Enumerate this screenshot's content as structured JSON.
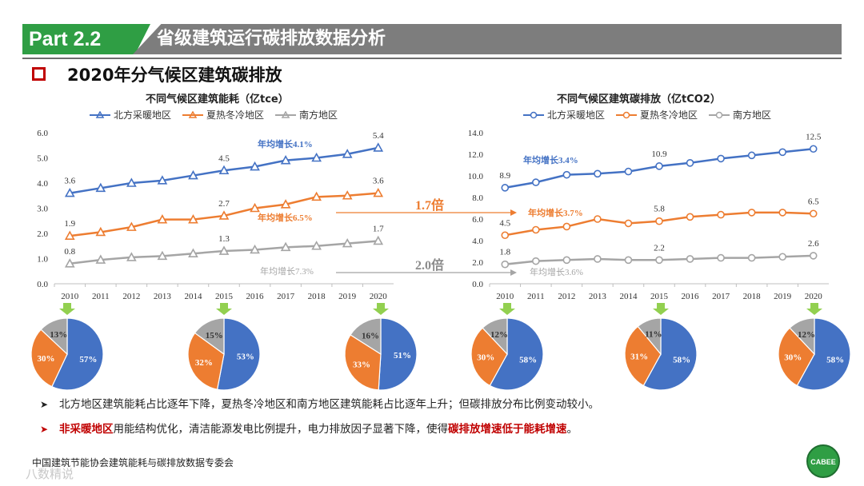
{
  "header": {
    "part": "Part 2.2",
    "title": "省级建筑运行碳排放数据分析"
  },
  "section": {
    "title": "2020年分气候区建筑碳排放"
  },
  "colors": {
    "north": "#4472c4",
    "hot": "#ed7d31",
    "south": "#a5a5a5",
    "green": "#2f9e44",
    "red": "#c00000",
    "grey": "#7d7d7d"
  },
  "legend": [
    "北方采暖地区",
    "夏热冬冷地区",
    "南方地区"
  ],
  "ratios": {
    "r1": "1.7倍",
    "r2": "2.0倍"
  },
  "chart_data": [
    {
      "type": "line",
      "title": "不同气候区建筑能耗（亿tce）",
      "x": [
        "2010",
        "2011",
        "2012",
        "2013",
        "2014",
        "2015",
        "2016",
        "2017",
        "2018",
        "2019",
        "2020"
      ],
      "ylim": [
        0,
        6
      ],
      "yticks": [
        "0.0",
        "1.0",
        "2.0",
        "3.0",
        "4.0",
        "5.0",
        "6.0"
      ],
      "series": [
        {
          "name": "北方采暖地区",
          "values": [
            3.6,
            3.8,
            4.0,
            4.1,
            4.3,
            4.5,
            4.65,
            4.9,
            5.0,
            5.15,
            5.4
          ],
          "labels": {
            "0": "3.6",
            "5": "4.5",
            "10": "5.4"
          },
          "growth": "年均增长4.1%"
        },
        {
          "name": "夏热冬冷地区",
          "values": [
            1.9,
            2.05,
            2.25,
            2.55,
            2.55,
            2.7,
            3.0,
            3.15,
            3.45,
            3.5,
            3.6
          ],
          "labels": {
            "0": "1.9",
            "5": "2.7",
            "10": "3.6"
          },
          "growth": "年均增长6.5%"
        },
        {
          "name": "南方地区",
          "values": [
            0.8,
            0.95,
            1.05,
            1.1,
            1.2,
            1.3,
            1.35,
            1.45,
            1.5,
            1.6,
            1.7
          ],
          "labels": {
            "0": "0.8",
            "5": "1.3",
            "10": "1.7"
          },
          "growth": "年均增长7.3%"
        }
      ]
    },
    {
      "type": "line",
      "title": "不同气候区建筑碳排放（亿tCO2）",
      "x": [
        "2010",
        "2011",
        "2012",
        "2013",
        "2014",
        "2015",
        "2016",
        "2017",
        "2018",
        "2019",
        "2020"
      ],
      "ylim": [
        0,
        14
      ],
      "yticks": [
        "0.0",
        "2.0",
        "4.0",
        "6.0",
        "8.0",
        "10.0",
        "12.0",
        "14.0"
      ],
      "series": [
        {
          "name": "北方采暖地区",
          "values": [
            8.9,
            9.4,
            10.1,
            10.2,
            10.4,
            10.9,
            11.2,
            11.6,
            11.9,
            12.2,
            12.5
          ],
          "labels": {
            "0": "8.9",
            "5": "10.9",
            "10": "12.5"
          },
          "growth": "年均增长3.4%"
        },
        {
          "name": "夏热冬冷地区",
          "values": [
            4.5,
            5.0,
            5.3,
            6.0,
            5.6,
            5.8,
            6.2,
            6.4,
            6.6,
            6.6,
            6.5
          ],
          "labels": {
            "0": "4.5",
            "5": "5.8",
            "10": "6.5"
          },
          "growth": "年均增长3.7%"
        },
        {
          "name": "南方地区",
          "values": [
            1.8,
            2.1,
            2.2,
            2.3,
            2.2,
            2.2,
            2.3,
            2.4,
            2.4,
            2.5,
            2.6
          ],
          "labels": {
            "0": "1.8",
            "5": "2.2",
            "10": "2.6"
          },
          "growth": "年均增长3.6%"
        }
      ]
    },
    {
      "type": "pie",
      "year": "2010",
      "metric": "能耗",
      "slices": [
        57,
        30,
        13
      ],
      "labels": [
        "57%",
        "30%",
        "13%"
      ]
    },
    {
      "type": "pie",
      "year": "2015",
      "metric": "能耗",
      "slices": [
        53,
        32,
        15
      ],
      "labels": [
        "53%",
        "32%",
        "15%"
      ]
    },
    {
      "type": "pie",
      "year": "2020",
      "metric": "能耗",
      "slices": [
        51,
        33,
        16
      ],
      "labels": [
        "51%",
        "33%",
        "16%"
      ]
    },
    {
      "type": "pie",
      "year": "2010",
      "metric": "碳排放",
      "slices": [
        58,
        30,
        12
      ],
      "labels": [
        "58%",
        "30%",
        "12%"
      ]
    },
    {
      "type": "pie",
      "year": "2015",
      "metric": "碳排放",
      "slices": [
        58,
        31,
        11
      ],
      "labels": [
        "58%",
        "31%",
        "11%"
      ]
    },
    {
      "type": "pie",
      "year": "2020",
      "metric": "碳排放",
      "slices": [
        58,
        30,
        12
      ],
      "labels": [
        "58%",
        "30%",
        "12%"
      ]
    }
  ],
  "bullets": {
    "b1": "北方地区建筑能耗占比逐年下降，夏热冬冷地区和南方地区建筑能耗占比逐年上升；但碳排放分布比例变动较小。",
    "b2_red1": "非采暖地区",
    "b2_mid": "用能结构优化，清洁能源发电比例提升，电力排放因子显著下降，使得",
    "b2_red2": "碳排放增速低于能耗增速",
    "b2_end": "。"
  },
  "footer": {
    "org": "中国建筑节能协会建筑能耗与碳排放数据专委会",
    "logo": "CABEE",
    "watermark": "八数精说"
  }
}
